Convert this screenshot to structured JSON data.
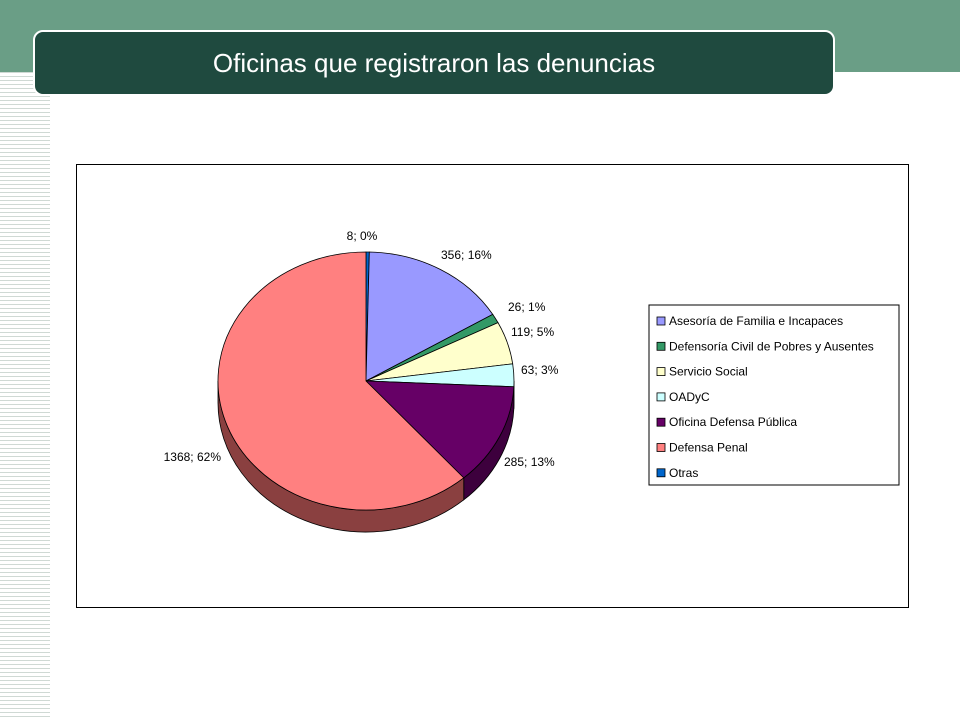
{
  "header": {
    "title": "Oficinas que registraron las denuncias"
  },
  "chart_data": {
    "type": "pie",
    "title": "",
    "categories": [
      "Asesoría de Familia e Incapaces",
      "Defensoría Civil de Pobres y Ausentes",
      "Servicio Social",
      "OADyC",
      "Oficina Defensa Pública",
      "Defensa Penal",
      "Otras"
    ],
    "values": [
      356,
      26,
      119,
      63,
      285,
      1368,
      8
    ],
    "labels": [
      "356; 16%",
      "26; 1%",
      "119; 5%",
      "63; 3%",
      "285; 13%",
      "1368; 62%",
      "8; 0%"
    ],
    "colors": [
      "#9999ff",
      "#339966",
      "#ffffcc",
      "#ccffff",
      "#660066",
      "#ff8080",
      "#0066cc"
    ],
    "side_colors": [
      "#5c5c99",
      "#1f5c3d",
      "#99997a",
      "#7a9999",
      "#3d003d",
      "#8a4040",
      "#003d7a"
    ],
    "legend_position": "right",
    "style": "3d-pie"
  }
}
